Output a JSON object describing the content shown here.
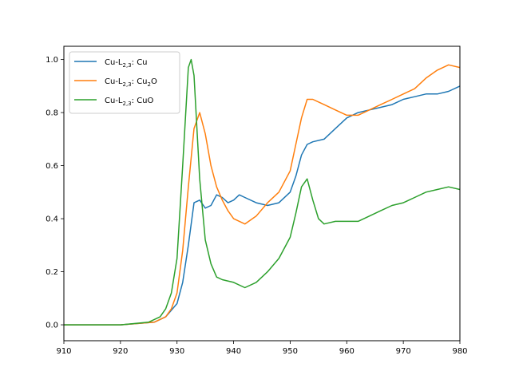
{
  "chart_data": {
    "type": "line",
    "title": "",
    "xlabel": "",
    "ylabel": "",
    "xlim": [
      910,
      980
    ],
    "ylim": [
      -0.06,
      1.05
    ],
    "xticks": [
      910,
      920,
      930,
      940,
      950,
      960,
      970,
      980
    ],
    "yticks": [
      0.0,
      0.2,
      0.4,
      0.6,
      0.8,
      1.0
    ],
    "xtick_labels": [
      "910",
      "920",
      "930",
      "940",
      "950",
      "960",
      "970",
      "980"
    ],
    "ytick_labels": [
      "0.0",
      "0.2",
      "0.4",
      "0.6",
      "0.8",
      "1.0"
    ],
    "grid": false,
    "legend_position": "upper-left",
    "series": [
      {
        "name": "Cu-L2,3: Cu",
        "legend_main": "Cu-L",
        "legend_sub": "2,3",
        "legend_tail": ": Cu",
        "color": "#1f77b4",
        "x": [
          910,
          920,
          926,
          928,
          930,
          931,
          932,
          933,
          934,
          935,
          936,
          937,
          938,
          939,
          940,
          941,
          942,
          944,
          946,
          948,
          950,
          951,
          952,
          953,
          954,
          956,
          958,
          960,
          962,
          964,
          966,
          968,
          970,
          972,
          974,
          976,
          978,
          980
        ],
        "y": [
          0.0,
          0.0,
          0.01,
          0.03,
          0.08,
          0.16,
          0.3,
          0.46,
          0.47,
          0.44,
          0.45,
          0.49,
          0.48,
          0.46,
          0.47,
          0.49,
          0.48,
          0.46,
          0.45,
          0.46,
          0.5,
          0.56,
          0.64,
          0.68,
          0.69,
          0.7,
          0.74,
          0.78,
          0.8,
          0.81,
          0.82,
          0.83,
          0.85,
          0.86,
          0.87,
          0.87,
          0.88,
          0.9
        ]
      },
      {
        "name": "Cu-L2,3: Cu2O",
        "legend_main": "Cu-L",
        "legend_sub": "2,3",
        "legend_tail": ": Cu",
        "legend_sub2": "2",
        "legend_tail2": "O",
        "color": "#ff7f0e",
        "x": [
          910,
          920,
          926,
          928,
          929,
          930,
          931,
          932,
          933,
          934,
          935,
          936,
          937,
          938,
          939,
          940,
          942,
          944,
          946,
          948,
          950,
          951,
          952,
          953,
          954,
          956,
          958,
          960,
          962,
          964,
          966,
          968,
          970,
          972,
          974,
          976,
          978,
          980
        ],
        "y": [
          0.0,
          0.0,
          0.01,
          0.03,
          0.06,
          0.12,
          0.28,
          0.52,
          0.74,
          0.8,
          0.72,
          0.6,
          0.52,
          0.47,
          0.43,
          0.4,
          0.38,
          0.41,
          0.46,
          0.5,
          0.58,
          0.68,
          0.78,
          0.85,
          0.85,
          0.83,
          0.81,
          0.79,
          0.79,
          0.81,
          0.83,
          0.85,
          0.87,
          0.89,
          0.93,
          0.96,
          0.98,
          0.97
        ]
      },
      {
        "name": "Cu-L2,3: CuO",
        "legend_main": "Cu-L",
        "legend_sub": "2,3",
        "legend_tail": ": CuO",
        "color": "#2ca02c",
        "x": [
          910,
          920,
          925,
          927,
          928,
          929,
          930,
          931,
          932,
          932.5,
          933,
          934,
          935,
          936,
          937,
          938,
          940,
          942,
          944,
          946,
          948,
          950,
          951,
          952,
          953,
          954,
          955,
          956,
          958,
          960,
          962,
          964,
          966,
          968,
          970,
          972,
          974,
          976,
          978,
          980
        ],
        "y": [
          0.0,
          0.0,
          0.01,
          0.03,
          0.06,
          0.12,
          0.25,
          0.6,
          0.97,
          1.0,
          0.94,
          0.55,
          0.32,
          0.23,
          0.18,
          0.17,
          0.16,
          0.14,
          0.16,
          0.2,
          0.25,
          0.33,
          0.42,
          0.52,
          0.55,
          0.47,
          0.4,
          0.38,
          0.39,
          0.39,
          0.39,
          0.41,
          0.43,
          0.45,
          0.46,
          0.48,
          0.5,
          0.51,
          0.52,
          0.51
        ]
      }
    ]
  }
}
